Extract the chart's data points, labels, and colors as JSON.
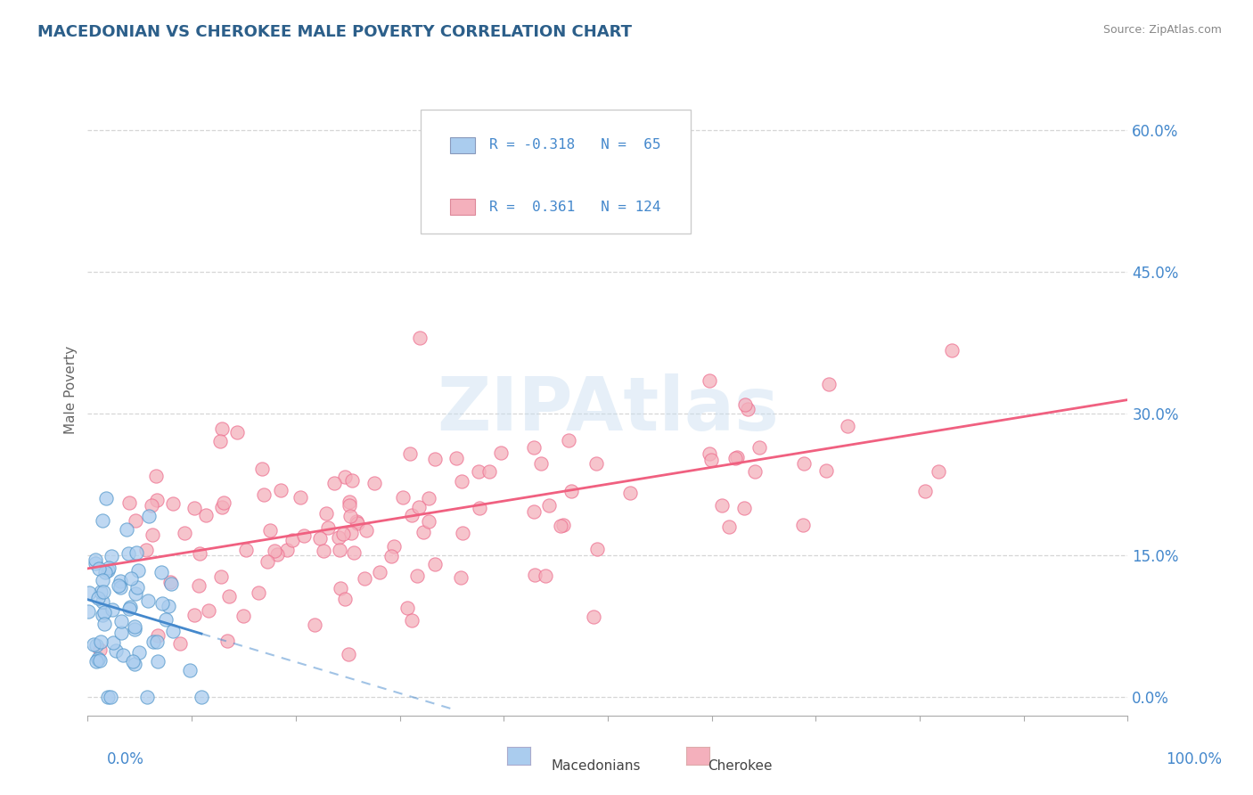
{
  "title": "MACEDONIAN VS CHEROKEE MALE POVERTY CORRELATION CHART",
  "source": "Source: ZipAtlas.com",
  "ylabel": "Male Poverty",
  "y_ticks": [
    0.0,
    0.15,
    0.3,
    0.45,
    0.6
  ],
  "x_range": [
    0.0,
    1.0
  ],
  "y_range": [
    -0.02,
    0.67
  ],
  "macedonian_color": "#aaccee",
  "macedonian_edge": "#5599cc",
  "cherokee_color": "#f4b0bc",
  "cherokee_edge": "#ee7090",
  "cherokee_line_color": "#f06080",
  "macedonian_line_color": "#4488cc",
  "macedonian_line_dash": [
    6,
    4
  ],
  "title_color": "#2c5f8a",
  "tick_color": "#4488cc",
  "watermark": "ZIPAtlas",
  "legend_R_macedonian": "-0.318",
  "legend_N_macedonian": "65",
  "legend_R_cherokee": "0.361",
  "legend_N_cherokee": "124"
}
